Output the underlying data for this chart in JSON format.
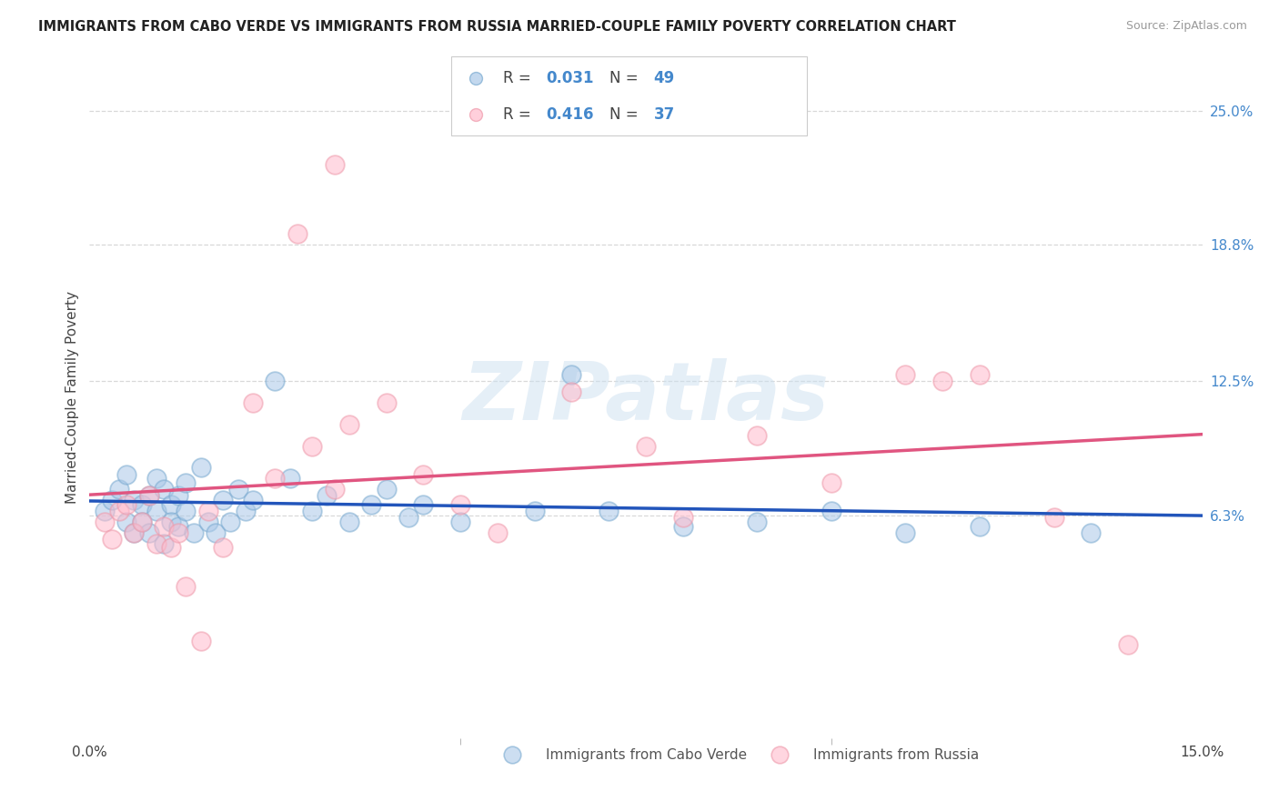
{
  "title": "IMMIGRANTS FROM CABO VERDE VS IMMIGRANTS FROM RUSSIA MARRIED-COUPLE FAMILY POVERTY CORRELATION CHART",
  "source": "Source: ZipAtlas.com",
  "ylabel": "Married-Couple Family Poverty",
  "xlim": [
    0.0,
    0.15
  ],
  "ylim": [
    -0.04,
    0.275
  ],
  "right_ytickvals": [
    0.063,
    0.125,
    0.188,
    0.25
  ],
  "right_yticklabels": [
    "6.3%",
    "12.5%",
    "18.8%",
    "25.0%"
  ],
  "hlines": [
    0.063,
    0.125,
    0.188,
    0.25
  ],
  "N1": 49,
  "N2": 37,
  "R1": 0.031,
  "R2": 0.416,
  "series1_label": "Immigrants from Cabo Verde",
  "series2_label": "Immigrants from Russia",
  "color1_face": "#aac8e8",
  "color1_edge": "#7aaad0",
  "color2_face": "#ffbbcc",
  "color2_edge": "#ee99aa",
  "line_color1": "#2255bb",
  "line_color2": "#e05580",
  "background_color": "#ffffff",
  "watermark_text": "ZIPatlas",
  "watermark_color": "#cce0f0",
  "legend_r1_val": "0.031",
  "legend_r2_val": "0.416",
  "legend_n1_val": "49",
  "legend_n2_val": "37",
  "r_color": "#4488cc",
  "n_color": "#4488cc",
  "title_fontsize": 10.5,
  "source_fontsize": 9,
  "axis_label_fontsize": 11,
  "tick_fontsize": 11,
  "legend_fontsize": 12
}
